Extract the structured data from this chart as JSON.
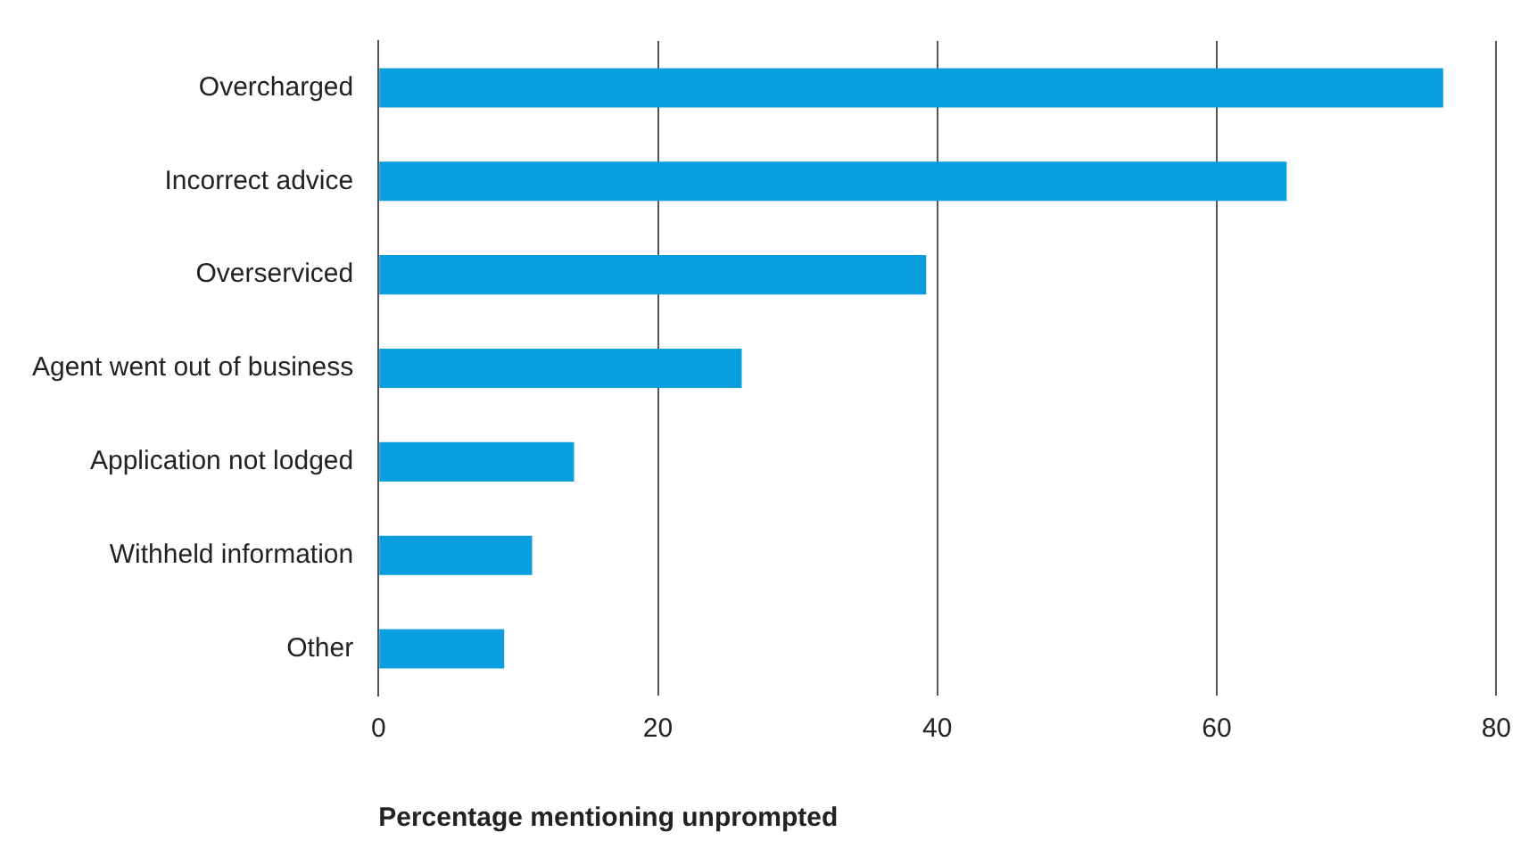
{
  "chart_data": {
    "type": "bar",
    "orientation": "horizontal",
    "xlabel": "Percentage mentioning unprompted",
    "categories": [
      "Overcharged",
      "Incorrect advice",
      "Overserviced",
      "Agent went out of business",
      "Application not lodged",
      "Withheld information",
      "Other"
    ],
    "values": [
      76.2,
      65,
      39.2,
      26,
      14,
      11,
      9
    ],
    "color": "#0a9ede",
    "xlim": [
      0,
      80
    ],
    "xticks": [
      0,
      20,
      40,
      60,
      80
    ],
    "grid": "x",
    "legend": false
  }
}
